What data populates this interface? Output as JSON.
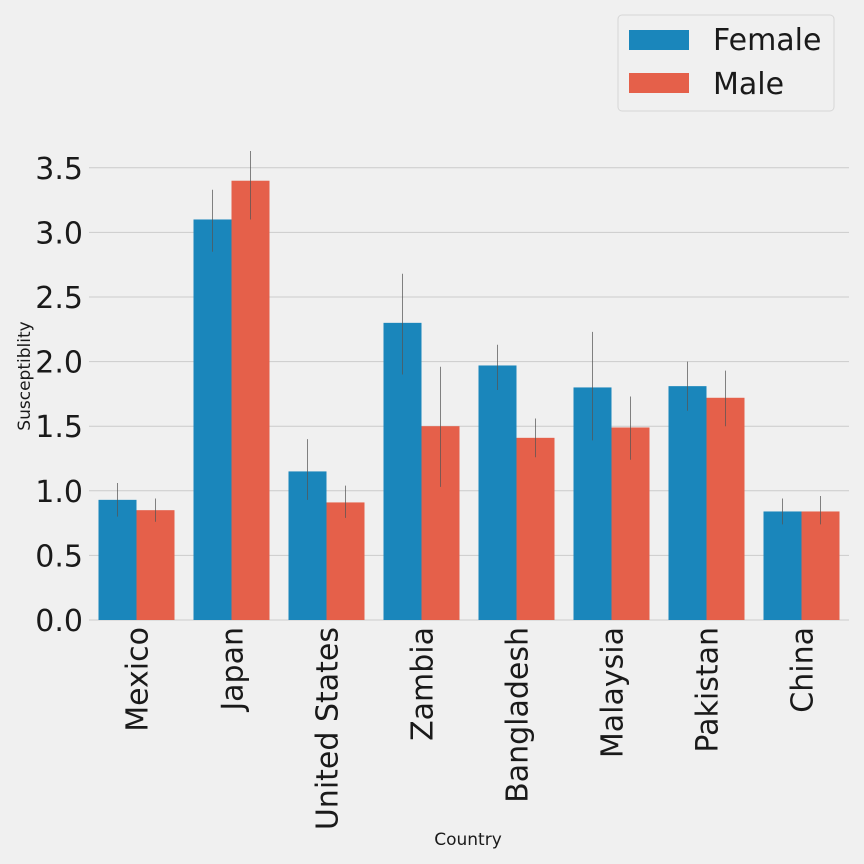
{
  "chart_data": {
    "type": "bar",
    "xlabel": "Country",
    "ylabel": "Susceptiblity",
    "categories": [
      "Mexico",
      "Japan",
      "United States",
      "Zambia",
      "Bangladesh",
      "Malaysia",
      "Pakistan",
      "China"
    ],
    "series": [
      {
        "name": "Female",
        "color": "#1a86bb",
        "values": [
          0.93,
          3.1,
          1.15,
          2.3,
          1.97,
          1.8,
          1.81,
          0.84
        ],
        "error_low": [
          0.8,
          2.85,
          0.93,
          1.9,
          1.78,
          1.39,
          1.62,
          0.74
        ],
        "error_high": [
          1.06,
          3.33,
          1.4,
          2.68,
          2.13,
          2.23,
          2.0,
          0.94
        ]
      },
      {
        "name": "Male",
        "color": "#e5604a",
        "values": [
          0.85,
          3.4,
          0.91,
          1.5,
          1.41,
          1.49,
          1.72,
          0.84
        ],
        "error_low": [
          0.76,
          3.1,
          0.79,
          1.03,
          1.26,
          1.24,
          1.5,
          0.74
        ],
        "error_high": [
          0.94,
          3.63,
          1.04,
          1.96,
          1.56,
          1.73,
          1.93,
          0.96
        ]
      }
    ],
    "yticks": [
      "0.0",
      "0.5",
      "1.0",
      "1.5",
      "2.0",
      "2.5",
      "3.0",
      "3.5"
    ],
    "ylim": [
      0,
      3.75
    ],
    "grid": true,
    "legend_position": "top-right"
  }
}
